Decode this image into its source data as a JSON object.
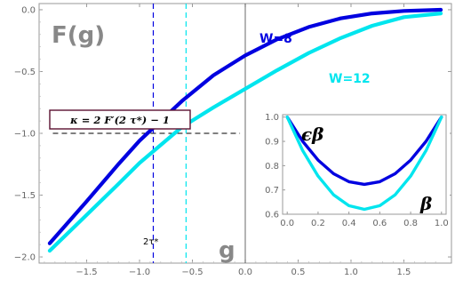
{
  "chart_data": [
    {
      "type": "line",
      "ylabel": "F(g)",
      "xlabel": "g",
      "xlim": [
        -1.95,
        1.95
      ],
      "ylim": [
        -2.05,
        0.05
      ],
      "x_ticks": [
        -1.5,
        -1.0,
        -0.5,
        0.0,
        0.5,
        1.0,
        1.5
      ],
      "x_tick_labels": [
        "−1.5",
        "−1.0",
        "−0.5",
        "0.0",
        "0.5",
        "1.0",
        "1.5"
      ],
      "y_ticks": [
        0.0,
        -0.5,
        -1.0,
        -1.5,
        -2.0
      ],
      "y_tick_labels": [
        "0.0",
        "−0.5",
        "−1.0",
        "−1.5",
        "−2.0"
      ],
      "grid": false,
      "series": [
        {
          "name": "W=8",
          "color": "#0000e0",
          "x": [
            -1.85,
            -1.5,
            -1.2,
            -1.0,
            -0.9,
            -0.6,
            -0.3,
            0.0,
            0.3,
            0.6,
            0.9,
            1.2,
            1.5,
            1.85
          ],
          "y": [
            -1.89,
            -1.55,
            -1.25,
            -1.06,
            -0.98,
            -0.74,
            -0.53,
            -0.37,
            -0.24,
            -0.14,
            -0.07,
            -0.03,
            -0.01,
            0.0
          ]
        },
        {
          "name": "W=12",
          "color": "#00e5ee",
          "x": [
            -1.85,
            -1.5,
            -1.2,
            -1.0,
            -0.6,
            -0.3,
            0.0,
            0.3,
            0.6,
            0.9,
            1.2,
            1.5,
            1.85
          ],
          "y": [
            -1.95,
            -1.66,
            -1.41,
            -1.24,
            -0.95,
            -0.79,
            -0.64,
            -0.49,
            -0.35,
            -0.23,
            -0.13,
            -0.06,
            -0.03
          ]
        }
      ],
      "reference_lines": {
        "horizontal_y": -1.0,
        "vertical_blue_x": -0.87,
        "vertical_cyan_x": -0.56,
        "vertical_origin_x": 0.0
      },
      "annotations": {
        "kappa_formula": "κ = 2 F′(2 τ*) − 1",
        "tau_marker": "2τ*"
      }
    },
    {
      "type": "line",
      "role": "inset",
      "ylabel": "ϵβ",
      "xlabel": "β",
      "xlim": [
        -0.03,
        1.03
      ],
      "ylim": [
        0.6,
        1.01
      ],
      "x_ticks": [
        0.0,
        0.2,
        0.4,
        0.6,
        0.8,
        1.0
      ],
      "x_tick_labels": [
        "0.0",
        "0.2",
        "0.4",
        "0.6",
        "0.8",
        "1.0"
      ],
      "y_ticks": [
        0.6,
        0.7,
        0.8,
        0.9,
        1.0
      ],
      "y_tick_labels": [
        "0.6",
        "0.7",
        "0.8",
        "0.9",
        "1.0"
      ],
      "series": [
        {
          "color": "#0000e0",
          "x": [
            0.0,
            0.1,
            0.2,
            0.3,
            0.4,
            0.5,
            0.6,
            0.7,
            0.8,
            0.9,
            1.0
          ],
          "y": [
            1.0,
            0.9,
            0.823,
            0.767,
            0.734,
            0.723,
            0.734,
            0.767,
            0.823,
            0.9,
            1.0
          ]
        },
        {
          "color": "#00e5ee",
          "x": [
            0.0,
            0.1,
            0.2,
            0.3,
            0.4,
            0.5,
            0.6,
            0.7,
            0.8,
            0.9,
            1.0
          ],
          "y": [
            1.0,
            0.862,
            0.757,
            0.68,
            0.635,
            0.62,
            0.635,
            0.68,
            0.757,
            0.862,
            1.0
          ]
        }
      ]
    }
  ]
}
